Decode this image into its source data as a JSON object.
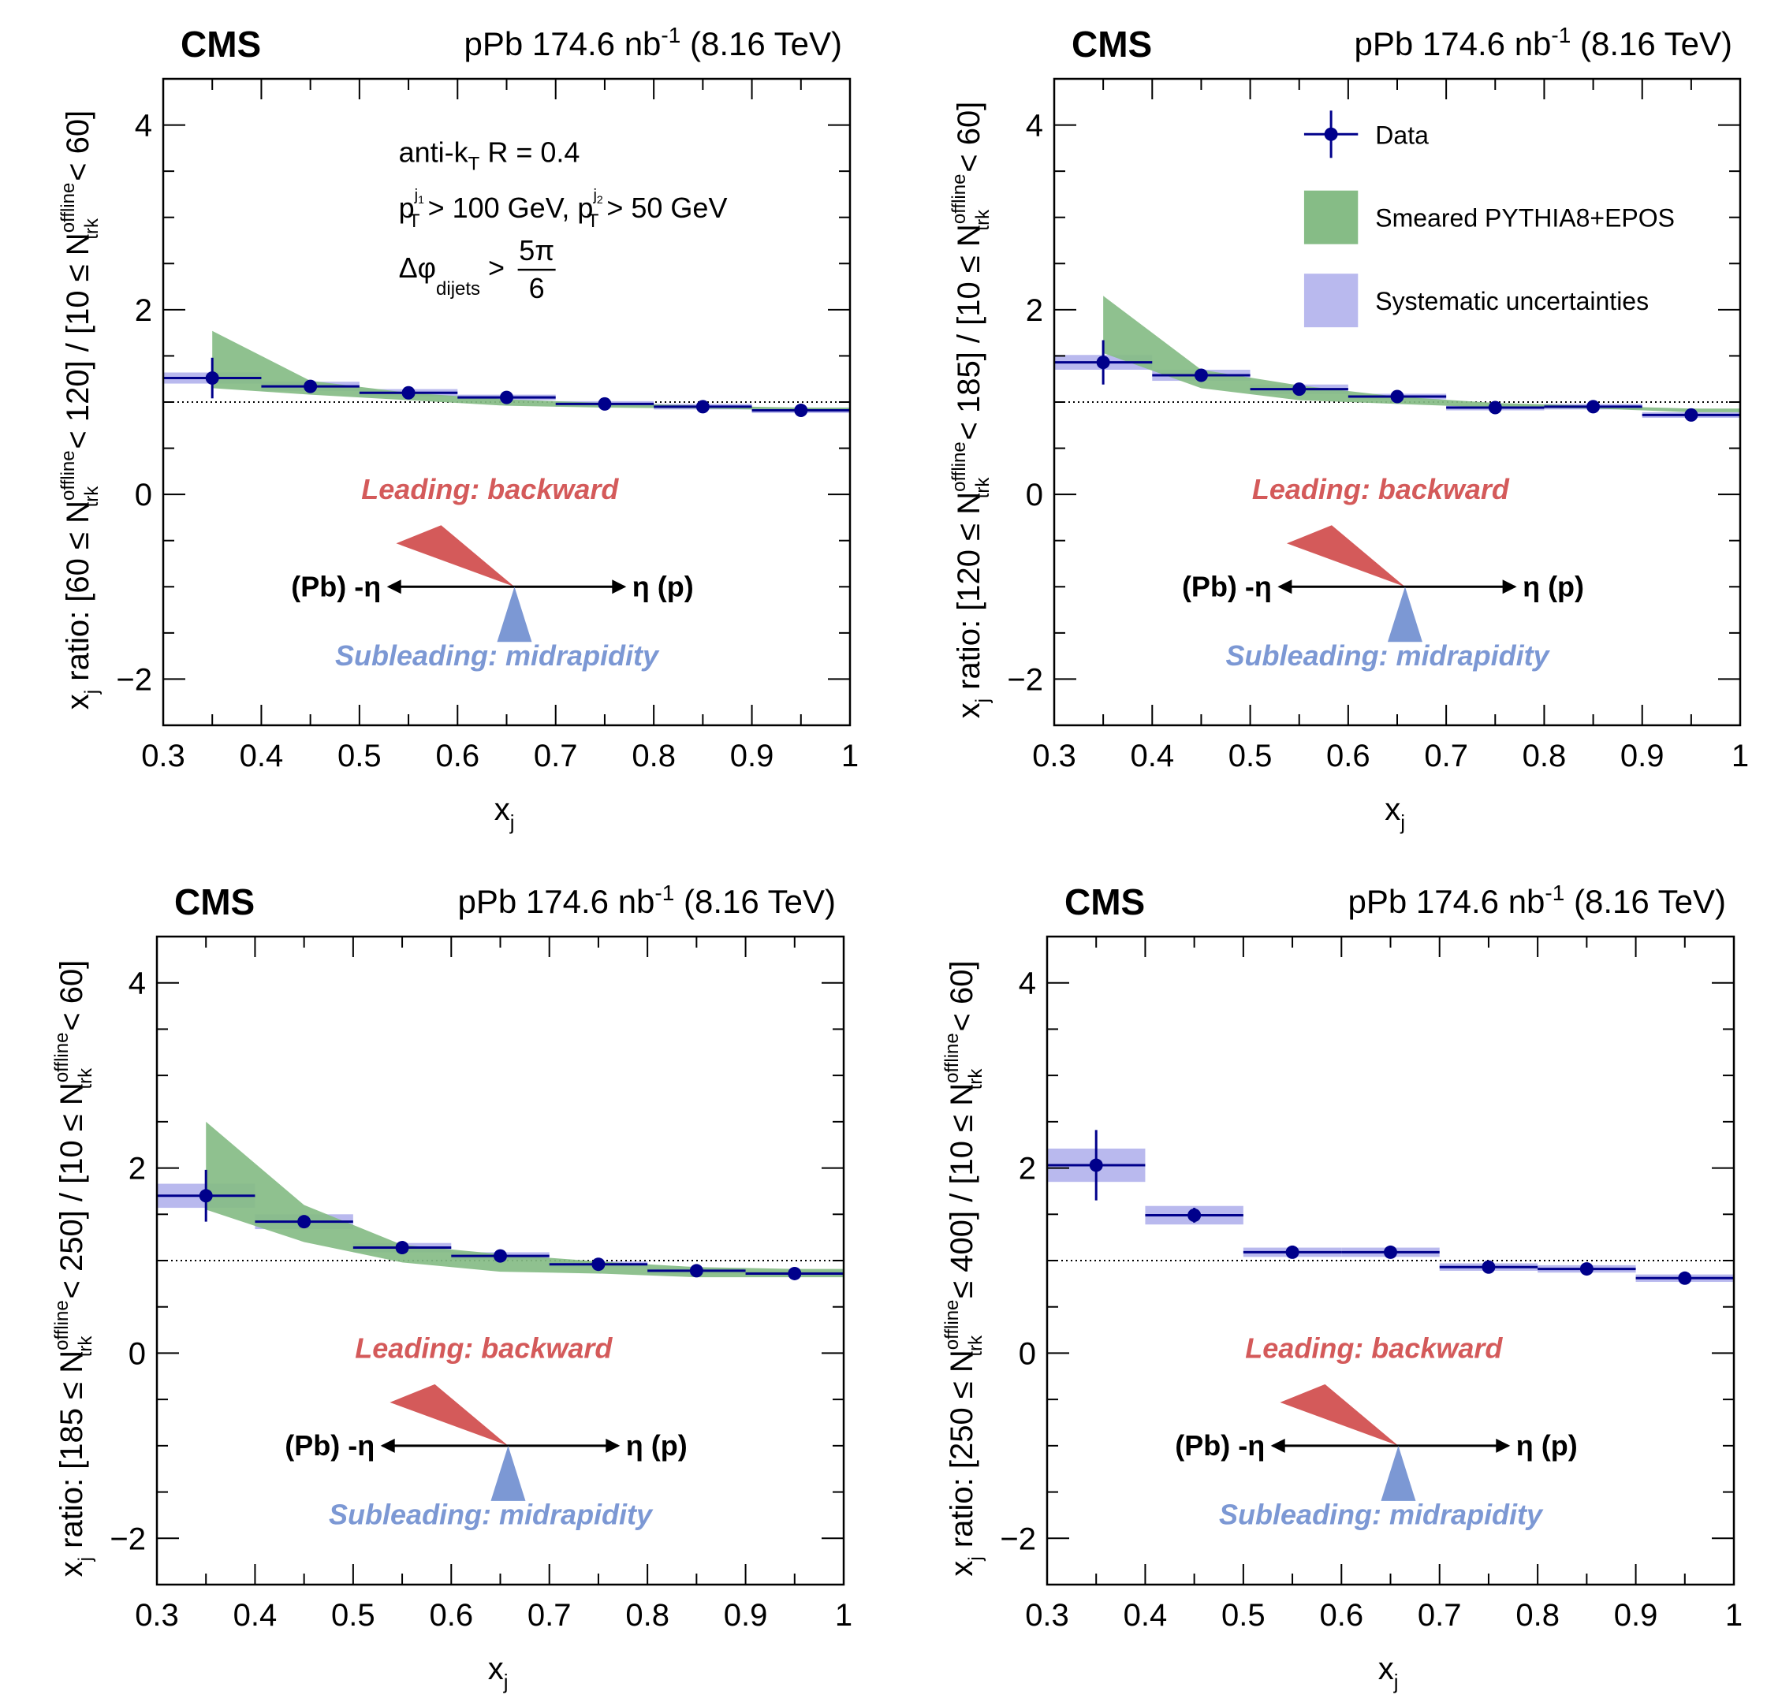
{
  "chart_data": [
    {
      "type": "scatter",
      "experiment": "CMS",
      "lumi_text": "pPb 174.6 nb",
      "lumi_sup": "-1",
      "energy": "(8.16 TeV)",
      "xlabel": "x",
      "xlabel_sub": "j",
      "ylabel": "x_j ratio: [60 ≤ N_trk^offline < 120] / [10 ≤ N_trk^offline < 60]",
      "ylabel_parts": {
        "pre": "x",
        "pre_sub": "j",
        "mid": " ratio: [60 ≤ N",
        "n_sub": "trk",
        "n_sup": "offline",
        "mid2": " < 120] / [10 ≤ N",
        "end": " < 60]"
      },
      "xlim": [
        0.3,
        1.0
      ],
      "ylim": [
        -2.5,
        4.5
      ],
      "xticks": [
        "0.3",
        "0.4",
        "0.5",
        "0.6",
        "0.7",
        "0.8",
        "0.9",
        "1"
      ],
      "yticks": [
        "−2",
        "0",
        "2",
        "4"
      ],
      "reference_line": 1.0,
      "series": [
        {
          "name": "Data",
          "x": [
            0.35,
            0.45,
            0.55,
            0.65,
            0.75,
            0.85,
            0.95
          ],
          "y": [
            1.26,
            1.17,
            1.1,
            1.05,
            0.98,
            0.95,
            0.91
          ],
          "stat_err": [
            0.22,
            0.04,
            0.03,
            0.03,
            0.03,
            0.03,
            0.03
          ],
          "syst_err": [
            0.06,
            0.05,
            0.04,
            0.03,
            0.03,
            0.03,
            0.03
          ]
        },
        {
          "name": "Smeared PYTHIA8+EPOS",
          "x": [
            0.35,
            0.45,
            0.55,
            0.65,
            0.75,
            0.85,
            0.95
          ],
          "low": [
            1.15,
            1.08,
            1.02,
            0.96,
            0.94,
            0.93,
            0.91
          ],
          "high": [
            1.77,
            1.23,
            1.1,
            1.03,
            0.99,
            0.96,
            0.94
          ]
        }
      ],
      "annotations": {
        "algo": "anti-k",
        "algo_sub": "T",
        "algo_rest": " R = 0.4",
        "pt_text1": "p",
        "pt_sup1": "j",
        "pt_sup1b": "1",
        "pt_sub1": "T",
        "pt_rest1": " > 100 GeV, p",
        "pt_sup2": "j",
        "pt_sup2b": "2",
        "pt_sub2": "T",
        "pt_rest2": " > 50 GeV",
        "dphi": "Δφ",
        "dphi_sub": "dijets",
        "dphi_gt": " >",
        "frac_num": "5π",
        "frac_den": "6"
      },
      "diagram": {
        "leading": "Leading: backward",
        "subleading": "Subleading: midrapidity",
        "left_label": "(Pb) -η",
        "right_label": "η (p)"
      }
    },
    {
      "type": "scatter",
      "experiment": "CMS",
      "lumi_text": "pPb 174.6 nb",
      "lumi_sup": "-1",
      "energy": "(8.16 TeV)",
      "xlabel": "x",
      "xlabel_sub": "j",
      "ylabel": "x_j ratio: [120 ≤ N_trk^offline < 185] / [10 ≤ N_trk^offline < 60]",
      "ylabel_parts": {
        "pre": "x",
        "pre_sub": "j",
        "mid": " ratio: [120 ≤ N",
        "n_sub": "trk",
        "n_sup": "offline",
        "mid2": " < 185] / [10 ≤ N",
        "end": " < 60]"
      },
      "xlim": [
        0.3,
        1.0
      ],
      "ylim": [
        -2.5,
        4.5
      ],
      "xticks": [
        "0.3",
        "0.4",
        "0.5",
        "0.6",
        "0.7",
        "0.8",
        "0.9",
        "1"
      ],
      "yticks": [
        "−2",
        "0",
        "2",
        "4"
      ],
      "reference_line": 1.0,
      "series": [
        {
          "name": "Data",
          "x": [
            0.35,
            0.45,
            0.55,
            0.65,
            0.75,
            0.85,
            0.95
          ],
          "y": [
            1.43,
            1.29,
            1.14,
            1.06,
            0.94,
            0.95,
            0.86
          ],
          "stat_err": [
            0.24,
            0.05,
            0.04,
            0.03,
            0.03,
            0.03,
            0.03
          ],
          "syst_err": [
            0.08,
            0.06,
            0.05,
            0.03,
            0.03,
            0.03,
            0.03
          ]
        },
        {
          "name": "Smeared PYTHIA8+EPOS",
          "x": [
            0.35,
            0.45,
            0.55,
            0.65,
            0.75,
            0.85,
            0.95
          ],
          "low": [
            1.53,
            1.15,
            1.02,
            0.98,
            0.94,
            0.93,
            0.89
          ],
          "high": [
            2.15,
            1.35,
            1.18,
            1.06,
            0.99,
            0.96,
            0.93
          ]
        }
      ],
      "legend": [
        {
          "label": "Data"
        },
        {
          "label": "Smeared PYTHIA8+EPOS"
        },
        {
          "label": "Systematic uncertainties"
        }
      ],
      "diagram": {
        "leading": "Leading: backward",
        "subleading": "Subleading: midrapidity",
        "left_label": "(Pb) -η",
        "right_label": "η (p)"
      }
    },
    {
      "type": "scatter",
      "experiment": "CMS",
      "lumi_text": "pPb 174.6 nb",
      "lumi_sup": "-1",
      "energy": "(8.16 TeV)",
      "xlabel": "x",
      "xlabel_sub": "j",
      "ylabel": "x_j ratio: [185 ≤ N_trk^offline < 250] / [10 ≤ N_trk^offline < 60]",
      "ylabel_parts": {
        "pre": "x",
        "pre_sub": "j",
        "mid": " ratio: [185 ≤ N",
        "n_sub": "trk",
        "n_sup": "offline",
        "mid2": " < 250] / [10 ≤ N",
        "end": " < 60]"
      },
      "xlim": [
        0.3,
        1.0
      ],
      "ylim": [
        -2.5,
        4.5
      ],
      "xticks": [
        "0.3",
        "0.4",
        "0.5",
        "0.6",
        "0.7",
        "0.8",
        "0.9",
        "1"
      ],
      "yticks": [
        "−2",
        "0",
        "2",
        "4"
      ],
      "reference_line": 1.0,
      "series": [
        {
          "name": "Data",
          "x": [
            0.35,
            0.45,
            0.55,
            0.65,
            0.75,
            0.85,
            0.95
          ],
          "y": [
            1.7,
            1.42,
            1.14,
            1.05,
            0.96,
            0.89,
            0.86
          ],
          "stat_err": [
            0.28,
            0.06,
            0.05,
            0.04,
            0.04,
            0.04,
            0.04
          ],
          "syst_err": [
            0.13,
            0.08,
            0.05,
            0.04,
            0.03,
            0.03,
            0.03
          ]
        },
        {
          "name": "Smeared PYTHIA8+EPOS",
          "x": [
            0.35,
            0.45,
            0.55,
            0.65,
            0.75,
            0.85,
            0.95
          ],
          "low": [
            1.55,
            1.2,
            0.98,
            0.88,
            0.86,
            0.82,
            0.82
          ],
          "high": [
            2.5,
            1.6,
            1.17,
            1.07,
            0.99,
            0.93,
            0.91
          ]
        }
      ],
      "diagram": {
        "leading": "Leading: backward",
        "subleading": "Subleading: midrapidity",
        "left_label": "(Pb) -η",
        "right_label": "η (p)"
      }
    },
    {
      "type": "scatter",
      "experiment": "CMS",
      "lumi_text": "pPb 174.6 nb",
      "lumi_sup": "-1",
      "energy": "(8.16 TeV)",
      "xlabel": "x",
      "xlabel_sub": "j",
      "ylabel": "x_j ratio: [250 ≤ N_trk^offline ≤ 400] / [10 ≤ N_trk^offline < 60]",
      "ylabel_parts": {
        "pre": "x",
        "pre_sub": "j",
        "mid": " ratio: [250 ≤ N",
        "n_sub": "trk",
        "n_sup": "offline",
        "mid2": " ≤ 400] / [10 ≤ N",
        "end": " < 60]"
      },
      "xlim": [
        0.3,
        1.0
      ],
      "ylim": [
        -2.5,
        4.5
      ],
      "xticks": [
        "0.3",
        "0.4",
        "0.5",
        "0.6",
        "0.7",
        "0.8",
        "0.9",
        "1"
      ],
      "yticks": [
        "−2",
        "0",
        "2",
        "4"
      ],
      "reference_line": 1.0,
      "series": [
        {
          "name": "Data",
          "x": [
            0.35,
            0.45,
            0.55,
            0.65,
            0.75,
            0.85,
            0.95
          ],
          "y": [
            2.03,
            1.49,
            1.09,
            1.09,
            0.93,
            0.91,
            0.81
          ],
          "stat_err": [
            0.38,
            0.08,
            0.05,
            0.04,
            0.04,
            0.04,
            0.04
          ],
          "syst_err": [
            0.18,
            0.1,
            0.05,
            0.05,
            0.04,
            0.04,
            0.04
          ]
        }
      ],
      "diagram": {
        "leading": "Leading: backward",
        "subleading": "Subleading: midrapidity",
        "left_label": "(Pb) -η",
        "right_label": "η (p)"
      }
    }
  ],
  "colors": {
    "data": "#00008b",
    "syst": "#b9b9ee",
    "model": "#86bc86",
    "leading": "#d45a5a",
    "subleading": "#7c98d4"
  }
}
